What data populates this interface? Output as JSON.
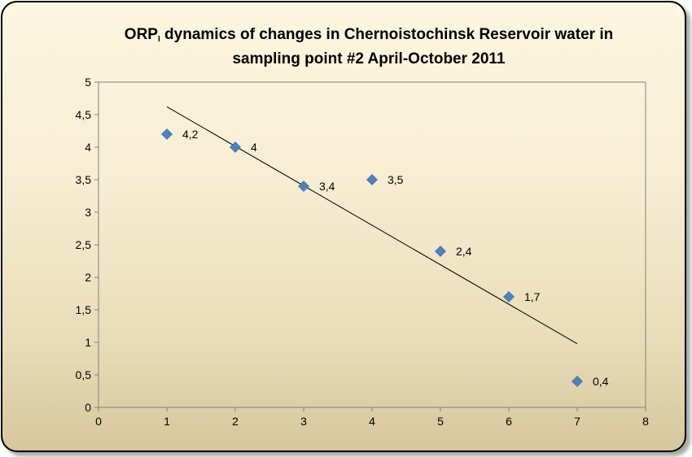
{
  "chart_data": {
    "type": "scatter",
    "title_main": "ORP",
    "title_sub": "I",
    "title_line1_rest": " dynamics  of changes in Chernoistochinsk  Reservoir water in",
    "title_line2": "sampling  point #2 April-October  2011",
    "series": [
      {
        "x": [
          1,
          2,
          3,
          4,
          5,
          6,
          7
        ],
        "values": [
          4.2,
          4,
          3.4,
          3.5,
          2.4,
          1.7,
          0.4
        ],
        "labels": [
          "4,2",
          "4",
          "3,4",
          "3,5",
          "2,4",
          "1,7",
          "0,4"
        ],
        "color": "#4f81bd",
        "marker": "diamond"
      }
    ],
    "trendline": {
      "type": "linear",
      "color": "#000000"
    },
    "xlim": [
      0,
      8
    ],
    "ylim": [
      0,
      5
    ],
    "x_ticks": [
      "0",
      "1",
      "2",
      "3",
      "4",
      "5",
      "6",
      "7",
      "8"
    ],
    "y_ticks": [
      "0",
      "0,5",
      "1",
      "1,5",
      "2",
      "2,5",
      "3",
      "3,5",
      "4",
      "4,5",
      "5"
    ],
    "xlabel": "",
    "ylabel": "",
    "grid": false,
    "legend": "none",
    "background_colors": [
      "#fdf6e0",
      "#d6c69c"
    ]
  }
}
